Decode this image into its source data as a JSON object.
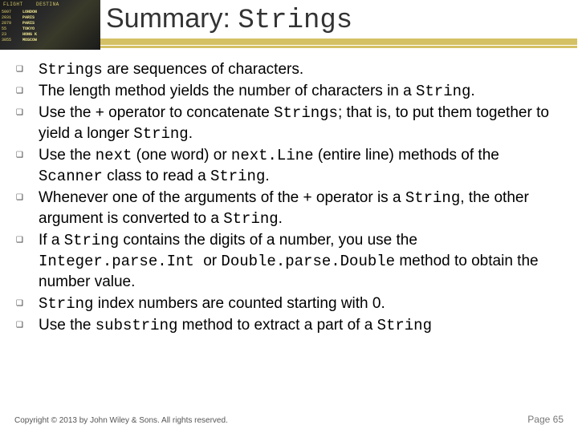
{
  "header": {
    "title_part1": "Summary: ",
    "title_part2": "Strings",
    "underline_color": "#d4c165",
    "board": {
      "top": "FLIGHT    DESTINA",
      "nums": "5097\n2031\n2879\n55\n23\n3055",
      "dest": "LONDON\nPARIS\nPARIS\nTOKYO\nHONG K\nMOSCOW"
    }
  },
  "bullets": [
    {
      "segments": [
        {
          "t": "Strings",
          "mono": true
        },
        {
          "t": " are sequences of characters.",
          "mono": false
        }
      ]
    },
    {
      "segments": [
        {
          "t": "The length method yields the number of characters in a ",
          "mono": false
        },
        {
          "t": "String",
          "mono": true
        },
        {
          "t": ".",
          "mono": false
        }
      ]
    },
    {
      "segments": [
        {
          "t": "Use the + operator to concatenate ",
          "mono": false
        },
        {
          "t": "Strings",
          "mono": true
        },
        {
          "t": "; that is, to put them together to yield a longer ",
          "mono": false
        },
        {
          "t": "String",
          "mono": true
        },
        {
          "t": ".",
          "mono": false
        }
      ]
    },
    {
      "segments": [
        {
          "t": "Use the ",
          "mono": false
        },
        {
          "t": "next",
          "mono": true
        },
        {
          "t": " (one word) or ",
          "mono": false
        },
        {
          "t": "next.Line",
          "mono": true
        },
        {
          "t": " (entire line) methods of the ",
          "mono": false
        },
        {
          "t": "Scanner",
          "mono": true
        },
        {
          "t": " class to read a ",
          "mono": false
        },
        {
          "t": "String",
          "mono": true
        },
        {
          "t": ".",
          "mono": false
        }
      ]
    },
    {
      "segments": [
        {
          "t": "Whenever one of the arguments of the + operator is a ",
          "mono": false
        },
        {
          "t": "String",
          "mono": true
        },
        {
          "t": ", the other argument is converted to a ",
          "mono": false
        },
        {
          "t": "String",
          "mono": true
        },
        {
          "t": ".",
          "mono": false
        }
      ]
    },
    {
      "segments": [
        {
          "t": "If a ",
          "mono": false
        },
        {
          "t": "String",
          "mono": true
        },
        {
          "t": " contains the digits of a number, you use the ",
          "mono": false
        },
        {
          "t": "Integer.parse.Int ",
          "mono": true
        },
        {
          "t": " or ",
          "mono": false
        },
        {
          "t": "Double.parse.Double",
          "mono": true
        },
        {
          "t": " method to obtain the number value.",
          "mono": false
        }
      ]
    },
    {
      "segments": [
        {
          "t": "String",
          "mono": true
        },
        {
          "t": " index numbers are counted starting with 0.",
          "mono": false
        }
      ]
    },
    {
      "segments": [
        {
          "t": "Use the ",
          "mono": false
        },
        {
          "t": "substring",
          "mono": true
        },
        {
          "t": " method to extract a part of a ",
          "mono": false
        },
        {
          "t": "String",
          "mono": true
        }
      ]
    }
  ],
  "footer": {
    "copyright": "Copyright © 2013 by John Wiley & Sons. All rights reserved.",
    "page": "Page 65"
  },
  "style": {
    "body_font": "Verdana",
    "mono_font": "Courier New",
    "title_fontsize": 34,
    "bullet_fontsize": 19,
    "footer_fontsize": 10,
    "bg_color": "#ffffff",
    "text_color": "#000000"
  }
}
